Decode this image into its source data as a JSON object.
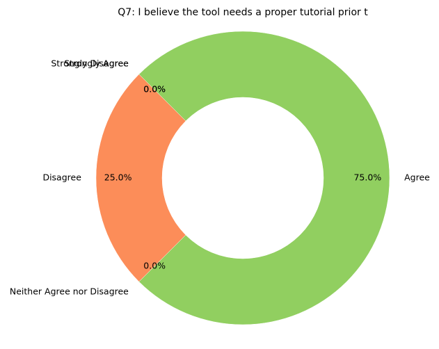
{
  "chart_data": {
    "type": "pie",
    "style": "donut",
    "title": "Q7: I believe the tool needs a proper tutorial prior t",
    "start_angle_deg": 135,
    "direction": "counterclockwise",
    "slices": [
      {
        "label": "Strongly Agree",
        "value": 0,
        "pct_label": "0.0%",
        "color": "#2ca25f"
      },
      {
        "label": "Disagree",
        "value": 25,
        "pct_label": "25.0%",
        "color": "#fc8d59"
      },
      {
        "label": "Neither Agree nor Disagree",
        "value": 0,
        "pct_label": "0.0%",
        "color": "#ffffbf"
      },
      {
        "label": "Agree",
        "value": 75,
        "pct_label": "75.0%",
        "color": "#91cf60"
      },
      {
        "label": "Strongly Disagree",
        "value": 0,
        "pct_label": "0.0%",
        "color": "#d73027"
      }
    ],
    "legend": "none"
  }
}
